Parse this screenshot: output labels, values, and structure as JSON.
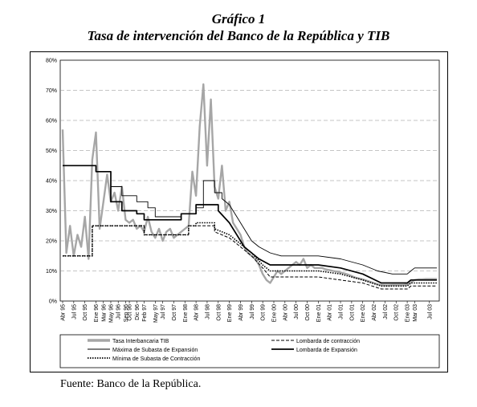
{
  "figure": {
    "title": "Gráfico 1",
    "subtitle": "Tasa de intervención del Banco de la República y TIB",
    "source": "Fuente: Banco de la República."
  },
  "chart_data": {
    "type": "line",
    "ylim": [
      0,
      80
    ],
    "y_ticks": [
      "0%",
      "10%",
      "20%",
      "30%",
      "40%",
      "50%",
      "60%",
      "70%",
      "80%"
    ],
    "x_range": [
      "1995-04",
      "2003-09"
    ],
    "x_ticks": [
      {
        "date": "1995-04",
        "label": "Abr 95"
      },
      {
        "date": "1995-07",
        "label": "Jul 95"
      },
      {
        "date": "1995-10",
        "label": "Oct 95"
      },
      {
        "date": "1996-01",
        "label": "Ene 96"
      },
      {
        "date": "1996-03",
        "label": "Mar 96"
      },
      {
        "date": "1996-05",
        "label": "May 96"
      },
      {
        "date": "1996-07",
        "label": "Jul 96"
      },
      {
        "date": "1996-09",
        "label": "Sep 96"
      },
      {
        "date": "1996-10",
        "label": "Oct 96"
      },
      {
        "date": "1996-12",
        "label": "Dic 96"
      },
      {
        "date": "1997-02",
        "label": "Feb 97"
      },
      {
        "date": "1997-05",
        "label": "May 97"
      },
      {
        "date": "1997-07",
        "label": "Jul 97"
      },
      {
        "date": "1997-10",
        "label": "Oct 97"
      },
      {
        "date": "1998-01",
        "label": "Ene 98"
      },
      {
        "date": "1998-04",
        "label": "Abr 98"
      },
      {
        "date": "1998-07",
        "label": "Jul 98"
      },
      {
        "date": "1998-10",
        "label": "Oct 98"
      },
      {
        "date": "1999-01",
        "label": "Ene 99"
      },
      {
        "date": "1999-04",
        "label": "Abr 99"
      },
      {
        "date": "1999-07",
        "label": "Jul 99"
      },
      {
        "date": "1999-10",
        "label": "Oct 99"
      },
      {
        "date": "2000-01",
        "label": "Ene 00"
      },
      {
        "date": "2000-04",
        "label": "Abr 00"
      },
      {
        "date": "2000-07",
        "label": "Jul 00"
      },
      {
        "date": "2000-10",
        "label": "Oct 00"
      },
      {
        "date": "2001-01",
        "label": "Ene 01"
      },
      {
        "date": "2001-04",
        "label": "Abr 01"
      },
      {
        "date": "2001-07",
        "label": "Jul 01"
      },
      {
        "date": "2001-10",
        "label": "Oct 01"
      },
      {
        "date": "2002-01",
        "label": "Ene 02"
      },
      {
        "date": "2002-04",
        "label": "Abr 02"
      },
      {
        "date": "2002-07",
        "label": "Jul 02"
      },
      {
        "date": "2002-10",
        "label": "Oct 02"
      },
      {
        "date": "2003-01",
        "label": "Ene 03"
      },
      {
        "date": "2003-03",
        "label": "Mar 03"
      },
      {
        "date": "2003-07",
        "label": "Jul 03"
      }
    ],
    "grid": "horizontal dashed",
    "legend_position": "bottom",
    "series": [
      {
        "name": "Tasa Interbancaria TIB",
        "color": "#a6a6a6",
        "style": "thick",
        "points": [
          [
            "1995-04",
            57
          ],
          [
            "1995-05",
            16
          ],
          [
            "1995-06",
            25
          ],
          [
            "1995-07",
            15
          ],
          [
            "1995-08",
            22
          ],
          [
            "1995-09",
            18
          ],
          [
            "1995-10",
            28
          ],
          [
            "1995-11",
            14
          ],
          [
            "1995-12",
            47
          ],
          [
            "1996-01",
            56
          ],
          [
            "1996-02",
            24
          ],
          [
            "1996-03",
            33
          ],
          [
            "1996-04",
            42
          ],
          [
            "1996-05",
            33
          ],
          [
            "1996-06",
            36
          ],
          [
            "1996-07",
            30
          ],
          [
            "1996-08",
            38
          ],
          [
            "1996-09",
            27
          ],
          [
            "1996-10",
            26
          ],
          [
            "1996-11",
            27
          ],
          [
            "1996-12",
            24
          ],
          [
            "1997-01",
            25
          ],
          [
            "1997-02",
            23
          ],
          [
            "1997-03",
            28
          ],
          [
            "1997-04",
            23
          ],
          [
            "1997-05",
            21
          ],
          [
            "1997-06",
            24
          ],
          [
            "1997-07",
            20
          ],
          [
            "1997-08",
            23
          ],
          [
            "1997-09",
            24
          ],
          [
            "1997-10",
            21
          ],
          [
            "1997-11",
            22
          ],
          [
            "1997-12",
            23
          ],
          [
            "1998-01",
            24
          ],
          [
            "1998-02",
            25
          ],
          [
            "1998-03",
            43
          ],
          [
            "1998-04",
            35
          ],
          [
            "1998-05",
            58
          ],
          [
            "1998-06",
            72
          ],
          [
            "1998-07",
            45
          ],
          [
            "1998-08",
            67
          ],
          [
            "1998-09",
            38
          ],
          [
            "1998-10",
            34
          ],
          [
            "1998-11",
            45
          ],
          [
            "1998-12",
            30
          ],
          [
            "1999-01",
            33
          ],
          [
            "1999-02",
            26
          ],
          [
            "1999-03",
            24
          ],
          [
            "1999-04",
            22
          ],
          [
            "1999-05",
            18
          ],
          [
            "1999-06",
            16
          ],
          [
            "1999-07",
            15
          ],
          [
            "1999-08",
            14
          ],
          [
            "1999-09",
            12
          ],
          [
            "1999-10",
            9
          ],
          [
            "1999-11",
            7
          ],
          [
            "1999-12",
            6
          ],
          [
            "2000-01",
            8
          ],
          [
            "2000-02",
            10
          ],
          [
            "2000-03",
            9
          ],
          [
            "2000-04",
            10
          ],
          [
            "2000-05",
            11
          ],
          [
            "2000-06",
            12
          ],
          [
            "2000-07",
            13
          ],
          [
            "2000-08",
            12
          ],
          [
            "2000-09",
            14
          ],
          [
            "2000-10",
            11
          ],
          [
            "2000-11",
            12
          ],
          [
            "2000-12",
            11
          ],
          [
            "2001-01",
            11
          ],
          [
            "2001-02",
            11
          ],
          [
            "2001-03",
            10.5
          ],
          [
            "2001-04",
            10.3
          ],
          [
            "2001-05",
            10
          ],
          [
            "2001-06",
            9.8
          ],
          [
            "2001-07",
            9.5
          ],
          [
            "2001-08",
            9.2
          ],
          [
            "2001-09",
            8.8
          ],
          [
            "2001-10",
            8.3
          ],
          [
            "2001-11",
            7.8
          ],
          [
            "2001-12",
            7.5
          ],
          [
            "2002-01",
            7.2
          ],
          [
            "2002-02",
            6.8
          ],
          [
            "2002-03",
            6.4
          ],
          [
            "2002-04",
            6
          ],
          [
            "2002-05",
            5.6
          ],
          [
            "2002-06",
            5.3
          ],
          [
            "2002-07",
            5.2
          ],
          [
            "2002-08",
            5.2
          ],
          [
            "2002-09",
            5.3
          ],
          [
            "2002-10",
            5.3
          ],
          [
            "2002-11",
            5.3
          ],
          [
            "2002-12",
            5.3
          ],
          [
            "2003-01",
            5.5
          ],
          [
            "2003-02",
            6.2
          ],
          [
            "2003-03",
            7
          ],
          [
            "2003-04",
            7.2
          ],
          [
            "2003-05",
            7.2
          ],
          [
            "2003-06",
            7.3
          ],
          [
            "2003-07",
            7.3
          ],
          [
            "2003-08",
            7.3
          ],
          [
            "2003-09",
            7.3
          ]
        ]
      },
      {
        "name": "Máxima de Subasta de Expansión",
        "color": "#000000",
        "style": "thin",
        "points": [
          [
            "1995-04",
            45
          ],
          [
            "1996-01",
            45
          ],
          [
            "1996-01",
            43
          ],
          [
            "1996-05",
            43
          ],
          [
            "1996-05",
            38
          ],
          [
            "1996-08",
            38
          ],
          [
            "1996-08",
            35
          ],
          [
            "1996-12",
            35
          ],
          [
            "1996-12",
            33
          ],
          [
            "1997-03",
            33
          ],
          [
            "1997-03",
            31
          ],
          [
            "1997-05",
            31
          ],
          [
            "1997-05",
            28
          ],
          [
            "1997-12",
            28
          ],
          [
            "1997-12",
            29
          ],
          [
            "1998-04",
            29
          ],
          [
            "1998-04",
            31
          ],
          [
            "1998-06",
            31
          ],
          [
            "1998-06",
            40
          ],
          [
            "1998-09",
            40
          ],
          [
            "1998-09",
            36
          ],
          [
            "1998-11",
            36
          ],
          [
            "1998-11",
            34
          ],
          [
            "1999-01",
            32
          ],
          [
            "1999-03",
            28
          ],
          [
            "1999-05",
            24
          ],
          [
            "1999-07",
            20
          ],
          [
            "1999-09",
            18
          ],
          [
            "1999-12",
            16
          ],
          [
            "2000-03",
            15
          ],
          [
            "2001-01",
            15
          ],
          [
            "2001-07",
            14
          ],
          [
            "2002-01",
            12
          ],
          [
            "2002-05",
            10
          ],
          [
            "2002-09",
            9
          ],
          [
            "2003-01",
            9
          ],
          [
            "2003-02",
            10
          ],
          [
            "2003-03",
            11
          ],
          [
            "2003-09",
            11
          ]
        ]
      },
      {
        "name": "Mínima de Subasta de Contracción",
        "color": "#000000",
        "style": "dotted",
        "points": [
          [
            "1995-04",
            15
          ],
          [
            "1995-12",
            15
          ],
          [
            "1995-12",
            25
          ],
          [
            "1997-02",
            25
          ],
          [
            "1997-02",
            22
          ],
          [
            "1998-02",
            22
          ],
          [
            "1998-02",
            25
          ],
          [
            "1998-04",
            25
          ],
          [
            "1998-04",
            26
          ],
          [
            "1998-09",
            26
          ],
          [
            "1998-09",
            24
          ],
          [
            "1999-01",
            22
          ],
          [
            "1999-04",
            19
          ],
          [
            "1999-07",
            16
          ],
          [
            "1999-10",
            12
          ],
          [
            "1999-12",
            10
          ],
          [
            "2001-01",
            10
          ],
          [
            "2001-07",
            9
          ],
          [
            "2002-01",
            7
          ],
          [
            "2002-06",
            5
          ],
          [
            "2003-01",
            5
          ],
          [
            "2003-02",
            6
          ],
          [
            "2003-09",
            6
          ]
        ]
      },
      {
        "name": "Lombarda de contracción",
        "color": "#000000",
        "style": "dashed",
        "points": [
          [
            "1995-04",
            15
          ],
          [
            "1995-12",
            15
          ],
          [
            "1995-12",
            25
          ],
          [
            "1997-02",
            25
          ],
          [
            "1997-02",
            22
          ],
          [
            "1998-02",
            22
          ],
          [
            "1998-02",
            25
          ],
          [
            "1998-09",
            25
          ],
          [
            "1998-09",
            23
          ],
          [
            "1999-01",
            21
          ],
          [
            "1999-04",
            18
          ],
          [
            "1999-07",
            15
          ],
          [
            "1999-10",
            11
          ],
          [
            "1999-12",
            8
          ],
          [
            "2001-01",
            8
          ],
          [
            "2001-07",
            7
          ],
          [
            "2002-01",
            6
          ],
          [
            "2002-06",
            4
          ],
          [
            "2003-01",
            4
          ],
          [
            "2003-02",
            5
          ],
          [
            "2003-09",
            5
          ]
        ]
      },
      {
        "name": "Lombarda de Expansión",
        "color": "#000000",
        "style": "thick",
        "points": [
          [
            "1995-04",
            45
          ],
          [
            "1996-01",
            45
          ],
          [
            "1996-01",
            43
          ],
          [
            "1996-05",
            43
          ],
          [
            "1996-05",
            33
          ],
          [
            "1996-08",
            33
          ],
          [
            "1996-08",
            30
          ],
          [
            "1996-12",
            30
          ],
          [
            "1996-12",
            29
          ],
          [
            "1997-02",
            29
          ],
          [
            "1997-02",
            27
          ],
          [
            "1997-12",
            27
          ],
          [
            "1997-12",
            29
          ],
          [
            "1998-04",
            29
          ],
          [
            "1998-04",
            32
          ],
          [
            "1998-10",
            32
          ],
          [
            "1998-10",
            30
          ],
          [
            "1999-01",
            26
          ],
          [
            "1999-03",
            22
          ],
          [
            "1999-05",
            18
          ],
          [
            "1999-07",
            16
          ],
          [
            "1999-09",
            14
          ],
          [
            "1999-12",
            12
          ],
          [
            "2001-01",
            12
          ],
          [
            "2001-07",
            11
          ],
          [
            "2002-01",
            9
          ],
          [
            "2002-06",
            6
          ],
          [
            "2003-01",
            6
          ],
          [
            "2003-02",
            7
          ],
          [
            "2003-09",
            7
          ]
        ]
      }
    ]
  }
}
